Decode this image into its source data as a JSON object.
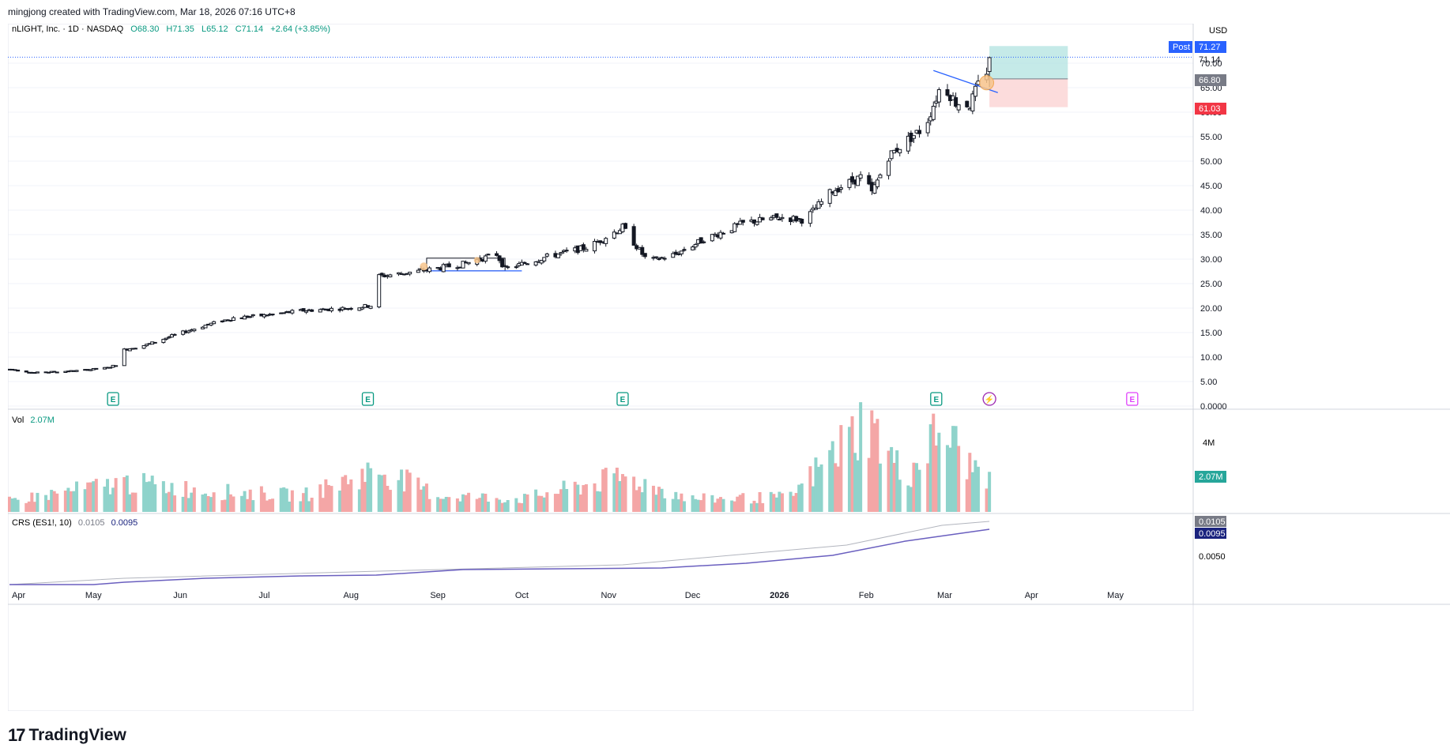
{
  "credit": "mingjong created with TradingView.com, Mar 18, 2026 07:16 UTC+8",
  "header": {
    "symbol": "nLIGHT, Inc. · 1D · NASDAQ",
    "open": "O68.30",
    "high": "H71.35",
    "low": "L65.12",
    "close": "C71.14",
    "change": "+2.64 (+3.85%)"
  },
  "currency": "USD",
  "price_axis": {
    "ticks": [
      "70.00",
      "65.00",
      "60.00",
      "55.00",
      "50.00",
      "45.00",
      "40.00",
      "35.00",
      "30.00",
      "25.00",
      "20.00",
      "15.00",
      "10.00",
      "5.00",
      "0.0000"
    ],
    "labels": {
      "post_tag": "Post",
      "post_value": "71.27",
      "last_value": "71.14",
      "target_value": "66.80",
      "stop_value": "61.03"
    }
  },
  "volume": {
    "label": "Vol",
    "value": "2.07M",
    "axis_tick": "4M",
    "axis_value": "2.07M"
  },
  "crs": {
    "label": "CRS (ES1!, 10)",
    "value1": "0.0105",
    "value2": "0.0095",
    "axis_value1": "0.0105",
    "axis_value2": "0.0095",
    "axis_tick": "0.0050"
  },
  "time_axis": [
    "Apr",
    "May",
    "Jun",
    "Jul",
    "Aug",
    "Sep",
    "Oct",
    "Nov",
    "Dec",
    "2026",
    "Feb",
    "Mar",
    "Apr",
    "May"
  ],
  "event_markers": [
    "E",
    "E",
    "E",
    "E",
    "⚡",
    "E"
  ],
  "brand": {
    "icon": "tradingview-logo-icon",
    "name": "TradingView"
  },
  "colors": {
    "up": "#26a69a",
    "down": "#ef5350",
    "volume_up": "#8fd3cb",
    "volume_down": "#f4a6a6",
    "crs_line": "#6a5fbf",
    "crs_line2": "#b2b5be",
    "target_zone": "#b2e3e0",
    "stop_zone": "#fbd6d6",
    "price_line": "#2962ff"
  },
  "chart_data": {
    "type": "candlestick",
    "symbol": "nLIGHT, Inc.",
    "interval": "1D",
    "exchange": "NASDAQ",
    "last_bar": {
      "open": 68.3,
      "high": 71.35,
      "low": 65.12,
      "close": 71.14,
      "change": 2.64,
      "change_pct": 3.85
    },
    "ylim": [
      0,
      75
    ],
    "price_path": [
      {
        "date": "2025-04-01",
        "close": 7.5
      },
      {
        "date": "2025-04-10",
        "close": 6.8
      },
      {
        "date": "2025-04-25",
        "close": 7.2
      },
      {
        "date": "2025-05-06",
        "close": 7.8
      },
      {
        "date": "2025-05-09",
        "close": 8.4
      },
      {
        "date": "2025-05-12",
        "close": 11.5
      },
      {
        "date": "2025-05-20",
        "close": 12.5
      },
      {
        "date": "2025-05-30",
        "close": 14.5
      },
      {
        "date": "2025-06-10",
        "close": 16.5
      },
      {
        "date": "2025-06-20",
        "close": 18.0
      },
      {
        "date": "2025-07-01",
        "close": 18.5
      },
      {
        "date": "2025-07-15",
        "close": 19.5
      },
      {
        "date": "2025-07-31",
        "close": 20.0
      },
      {
        "date": "2025-08-08",
        "close": 20.5
      },
      {
        "date": "2025-08-11",
        "close": 26.5
      },
      {
        "date": "2025-08-25",
        "close": 27.5
      },
      {
        "date": "2025-09-10",
        "close": 29.0
      },
      {
        "date": "2025-09-22",
        "close": 31.0
      },
      {
        "date": "2025-09-25",
        "close": 28.0
      },
      {
        "date": "2025-10-10",
        "close": 30.5
      },
      {
        "date": "2025-10-25",
        "close": 32.5
      },
      {
        "date": "2025-11-06",
        "close": 36.5
      },
      {
        "date": "2025-11-15",
        "close": 29.5
      },
      {
        "date": "2025-11-25",
        "close": 31.0
      },
      {
        "date": "2025-12-05",
        "close": 34.0
      },
      {
        "date": "2025-12-20",
        "close": 37.5
      },
      {
        "date": "2026-01-02",
        "close": 38.5
      },
      {
        "date": "2026-01-10",
        "close": 38.0
      },
      {
        "date": "2026-01-20",
        "close": 44.0
      },
      {
        "date": "2026-01-31",
        "close": 47.0
      },
      {
        "date": "2026-02-03",
        "close": 43.5
      },
      {
        "date": "2026-02-09",
        "close": 51.0
      },
      {
        "date": "2026-02-15",
        "close": 54.0
      },
      {
        "date": "2026-02-22",
        "close": 57.0
      },
      {
        "date": "2026-02-28",
        "close": 66.0
      },
      {
        "date": "2026-03-05",
        "close": 62.0
      },
      {
        "date": "2026-03-10",
        "close": 61.5
      },
      {
        "date": "2026-03-13",
        "close": 65.5
      },
      {
        "date": "2026-03-16",
        "close": 68.5
      },
      {
        "date": "2026-03-17",
        "close": 71.14
      }
    ],
    "volume_unit": "M",
    "volume_ylim": [
      0,
      5.3
    ],
    "volume_path": [
      {
        "date": "2025-04-01",
        "volume": 0.6
      },
      {
        "date": "2025-05-12",
        "volume": 1.6
      },
      {
        "date": "2025-06-15",
        "volume": 1.1
      },
      {
        "date": "2025-07-15",
        "volume": 0.9
      },
      {
        "date": "2025-08-11",
        "volume": 2.3
      },
      {
        "date": "2025-09-01",
        "volume": 0.9
      },
      {
        "date": "2025-10-01",
        "volume": 0.7
      },
      {
        "date": "2025-11-06",
        "volume": 1.9
      },
      {
        "date": "2025-12-01",
        "volume": 0.7
      },
      {
        "date": "2026-01-05",
        "volume": 0.8
      },
      {
        "date": "2026-02-01",
        "volume": 5.0
      },
      {
        "date": "2026-02-15",
        "volume": 1.8
      },
      {
        "date": "2026-02-28",
        "volume": 4.6
      },
      {
        "date": "2026-03-10",
        "volume": 2.5
      },
      {
        "date": "2026-03-17",
        "volume": 2.07
      }
    ],
    "position": {
      "entry": 66.8,
      "target": 73.5,
      "stop": 61.03,
      "start": "2026-03-17",
      "end": "2026-04-14"
    },
    "trendline": {
      "from": {
        "date": "2026-02-25",
        "price": 68.5
      },
      "to": {
        "date": "2026-03-20",
        "price": 64.0
      }
    },
    "consolidation_box": {
      "from": "2025-08-28",
      "to": "2025-09-25",
      "top": 30.2,
      "bottom": 27.6
    },
    "earnings_dates": [
      "2025-05-08",
      "2025-08-07",
      "2025-11-06",
      "2026-02-26"
    ],
    "upcoming_earnings": "2026-05-07",
    "dividend_event": "2026-03-17",
    "crs": {
      "ylim": [
        0.002,
        0.0112
      ],
      "path": [
        {
          "date": "2025-04-01",
          "value": 0.0025
        },
        {
          "date": "2025-05-01",
          "value": 0.0025
        },
        {
          "date": "2025-05-12",
          "value": 0.0028
        },
        {
          "date": "2025-06-10",
          "value": 0.0033
        },
        {
          "date": "2025-07-15",
          "value": 0.0036
        },
        {
          "date": "2025-08-10",
          "value": 0.0037
        },
        {
          "date": "2025-09-10",
          "value": 0.0044
        },
        {
          "date": "2025-10-15",
          "value": 0.0045
        },
        {
          "date": "2025-11-20",
          "value": 0.0046
        },
        {
          "date": "2025-12-20",
          "value": 0.0052
        },
        {
          "date": "2026-01-20",
          "value": 0.0062
        },
        {
          "date": "2026-02-15",
          "value": 0.008
        },
        {
          "date": "2026-03-17",
          "value": 0.0095
        }
      ],
      "path_raw": [
        {
          "date": "2025-04-01",
          "value": 0.0025
        },
        {
          "date": "2025-05-12",
          "value": 0.0033
        },
        {
          "date": "2025-08-11",
          "value": 0.0042
        },
        {
          "date": "2025-11-06",
          "value": 0.005
        },
        {
          "date": "2026-01-25",
          "value": 0.0075
        },
        {
          "date": "2026-02-28",
          "value": 0.01
        },
        {
          "date": "2026-03-17",
          "value": 0.0105
        }
      ]
    }
  }
}
